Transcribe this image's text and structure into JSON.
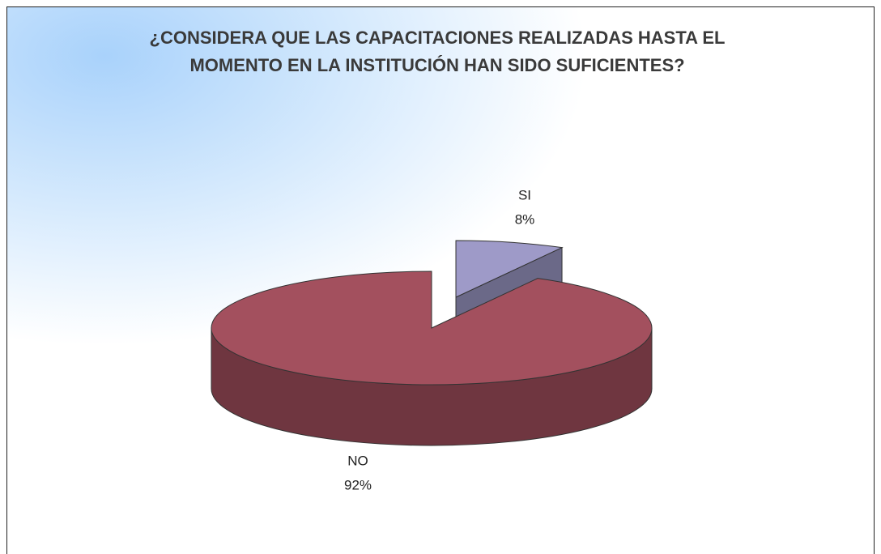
{
  "chart_data": {
    "type": "pie",
    "title": "¿CONSIDERA QUE LAS CAPACITACIONES REALIZADAS HASTA EL MOMENTO EN LA INSTITUCIÓN HAN SIDO SUFICIENTES?",
    "categories": [
      "SI",
      "NO"
    ],
    "values": [
      8,
      92
    ],
    "value_labels": [
      "8%",
      "92%"
    ],
    "colors": [
      "#9e9ac8",
      "#a3505e"
    ]
  }
}
